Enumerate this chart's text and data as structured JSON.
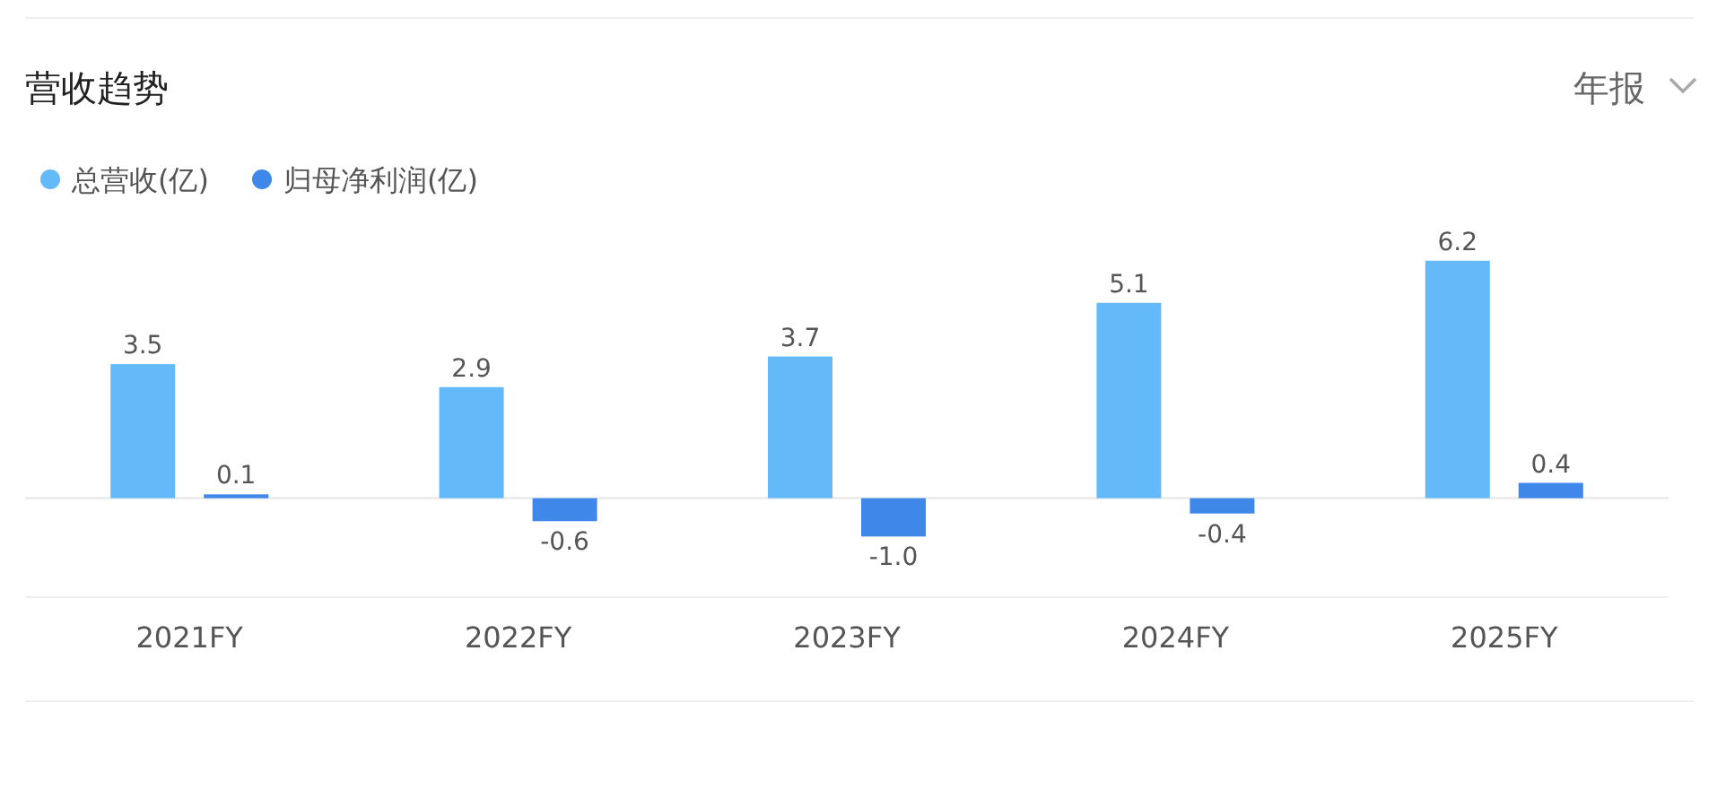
{
  "chart_data": {
    "type": "bar",
    "title": "营收趋势",
    "annotations": [
      "年报"
    ],
    "categories": [
      "2021FY",
      "2022FY",
      "2023FY",
      "2024FY",
      "2025FY"
    ],
    "series": [
      {
        "name": "总营收(亿)",
        "color": "#64baf8",
        "values": [
          3.5,
          2.9,
          3.7,
          5.1,
          6.2
        ],
        "value_labels": [
          "3.5",
          "2.9",
          "3.7",
          "5.1",
          "6.2"
        ]
      },
      {
        "name": "归母净利润(亿)",
        "color": "#3f87e9",
        "values": [
          0.1,
          -0.6,
          -1.0,
          -0.4,
          0.4
        ],
        "value_labels": [
          "0.1",
          "-0.6",
          "-1.0",
          "-0.4",
          "0.4"
        ]
      }
    ],
    "legend": "top left",
    "grid": false
  }
}
